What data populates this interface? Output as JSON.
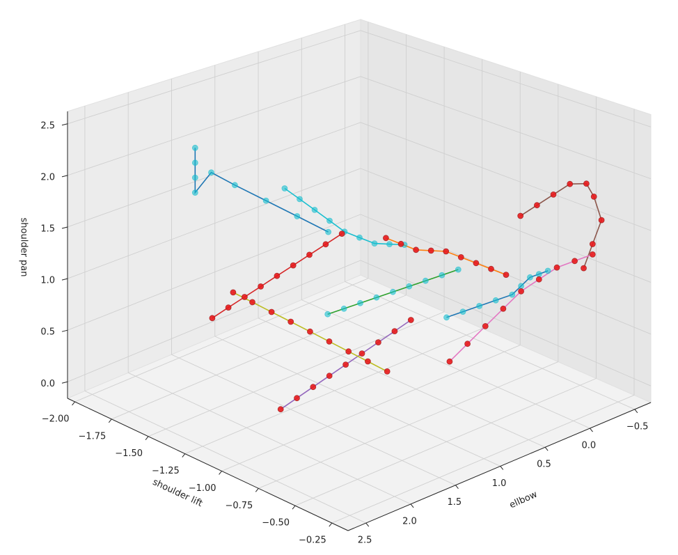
{
  "chart_data": {
    "type": "scatter3d",
    "xlabel": "shoulder lift",
    "ylabel": "ellbow",
    "zlabel": "shoulder pan",
    "xlim": [
      -2.05,
      -0.14
    ],
    "ylim": [
      -0.68,
      2.7
    ],
    "zlim": [
      -0.16,
      2.62
    ],
    "xticks": [
      {
        "value": -2.0,
        "label": "−2.00"
      },
      {
        "value": -1.75,
        "label": "−1.75"
      },
      {
        "value": -1.5,
        "label": "−1.50"
      },
      {
        "value": -1.25,
        "label": "−1.25"
      },
      {
        "value": -1.0,
        "label": "−1.00"
      },
      {
        "value": -0.75,
        "label": "−0.75"
      },
      {
        "value": -0.5,
        "label": "−0.50"
      },
      {
        "value": -0.25,
        "label": "−0.25"
      }
    ],
    "yticks": [
      {
        "value": -0.5,
        "label": "−0.5"
      },
      {
        "value": 0,
        "label": "0.0"
      },
      0.5,
      {
        "value": 1,
        "label": "1.0"
      },
      1.5,
      {
        "value": 2,
        "label": "2.0"
      },
      2.5
    ],
    "zticks": [
      {
        "value": 0,
        "label": "0.0"
      },
      0.5,
      {
        "value": 1,
        "label": "1.0"
      },
      1.5,
      {
        "value": 2,
        "label": "2.0"
      },
      2.5
    ],
    "grid": true,
    "series": [
      {
        "color": "#17becf",
        "line_color": "#1f77b4",
        "x": [
          -1.95,
          -1.95,
          -1.95,
          -1.95,
          -1.9,
          -1.8,
          -1.65,
          -1.5,
          -1.35
        ],
        "y": [
          1.4,
          1.4,
          1.4,
          1.4,
          1.3,
          1.2,
          1.1,
          1.0,
          0.9
        ],
        "z": [
          1.95,
          1.8,
          1.65,
          1.5,
          1.7,
          1.6,
          1.5,
          1.4,
          1.3
        ]
      },
      {
        "color": "#17becf",
        "line_color": "#2ca02c",
        "x": [
          -1.0,
          -0.95,
          -0.9,
          -0.85,
          -0.8,
          -0.75,
          -0.7,
          -0.65,
          -0.6
        ],
        "y": [
          1.5,
          1.4,
          1.3,
          1.2,
          1.1,
          1.0,
          0.9,
          0.8,
          0.7
        ],
        "z": [
          0.9,
          0.95,
          1.0,
          1.05,
          1.1,
          1.15,
          1.2,
          1.25,
          1.3
        ]
      },
      {
        "color": "#17becf",
        "line_color": "#1f77b4",
        "x": [
          -0.5,
          -0.45,
          -0.4,
          -0.35,
          -0.3,
          -0.3,
          -0.3,
          -0.3,
          -0.3
        ],
        "y": [
          1.0,
          0.9,
          0.8,
          0.7,
          0.6,
          0.5,
          0.4,
          0.3,
          0.2
        ],
        "z": [
          1.0,
          1.05,
          1.1,
          1.15,
          1.2,
          1.25,
          1.3,
          1.3,
          1.3
        ]
      },
      {
        "color": "#17becf",
        "line_color": "#17becf",
        "x": [
          -1.7,
          -1.6,
          -1.5,
          -1.4,
          -1.3,
          -1.2,
          -1.1,
          -1.0,
          -0.9
        ],
        "y": [
          0.8,
          0.8,
          0.8,
          0.8,
          0.8,
          0.8,
          0.8,
          0.8,
          0.8
        ],
        "z": [
          1.5,
          1.45,
          1.4,
          1.35,
          1.3,
          1.3,
          1.3,
          1.35,
          1.4
        ]
      },
      {
        "color": "#e8191c",
        "line_color": "#d62728",
        "x": [
          -1.6,
          -1.55,
          -1.5,
          -1.45,
          -1.4,
          -1.35,
          -1.3,
          -1.25,
          -1.2
        ],
        "y": [
          1.8,
          1.7,
          1.6,
          1.5,
          1.4,
          1.3,
          1.2,
          1.1,
          1.0
        ],
        "z": [
          0.6,
          0.7,
          0.8,
          0.9,
          1.0,
          1.1,
          1.2,
          1.3,
          1.4
        ]
      },
      {
        "color": "#e8191c",
        "line_color": "#ff7f0e",
        "x": [
          -1.2,
          -1.1,
          -1.0,
          -0.9,
          -0.8,
          -0.7,
          -0.6,
          -0.5,
          -0.4
        ],
        "y": [
          0.5,
          0.5,
          0.5,
          0.5,
          0.5,
          0.5,
          0.5,
          0.5,
          0.5
        ],
        "z": [
          1.2,
          1.2,
          1.2,
          1.25,
          1.3,
          1.3,
          1.3,
          1.3,
          1.3
        ]
      },
      {
        "color": "#e8191c",
        "line_color": "#9467bd",
        "x": [
          -0.9,
          -0.85,
          -0.8,
          -0.75,
          -0.7,
          -0.65,
          -0.6,
          -0.55,
          -0.5
        ],
        "y": [
          2.2,
          2.1,
          2.0,
          1.9,
          1.8,
          1.7,
          1.6,
          1.5,
          1.4
        ],
        "z": [
          0.3,
          0.4,
          0.5,
          0.6,
          0.7,
          0.8,
          0.9,
          1.0,
          1.1
        ]
      },
      {
        "color": "#e8191c",
        "line_color": "#8c564b",
        "x": [
          -0.6,
          -0.55,
          -0.5,
          -0.45,
          -0.4,
          -0.35,
          -0.3,
          -0.3,
          -0.3
        ],
        "y": [
          0.0,
          -0.1,
          -0.2,
          -0.3,
          -0.4,
          -0.4,
          -0.4,
          -0.3,
          -0.2
        ],
        "z": [
          1.6,
          1.7,
          1.8,
          1.9,
          1.9,
          1.8,
          1.6,
          1.4,
          1.2
        ]
      },
      {
        "color": "#e8191c",
        "line_color": "#e377c2",
        "x": [
          -0.3,
          -0.3,
          -0.3,
          -0.3,
          -0.3,
          -0.3,
          -0.3,
          -0.3,
          -0.3
        ],
        "y": [
          -0.3,
          -0.1,
          0.1,
          0.3,
          0.5,
          0.7,
          0.9,
          1.1,
          1.3
        ],
        "z": [
          1.3,
          1.3,
          1.3,
          1.25,
          1.2,
          1.1,
          1.0,
          0.9,
          0.8
        ]
      },
      {
        "color": "#e8191c",
        "line_color": "#bcbd22",
        "x": [
          -1.4,
          -1.3,
          -1.2,
          -1.1,
          -1.0,
          -0.9,
          -0.8,
          -0.7,
          -0.6
        ],
        "y": [
          1.9,
          1.85,
          1.8,
          1.75,
          1.7,
          1.65,
          1.6,
          1.55,
          1.5
        ],
        "z": [
          1.0,
          0.95,
          0.9,
          0.85,
          0.8,
          0.75,
          0.7,
          0.65,
          0.6
        ]
      }
    ]
  }
}
